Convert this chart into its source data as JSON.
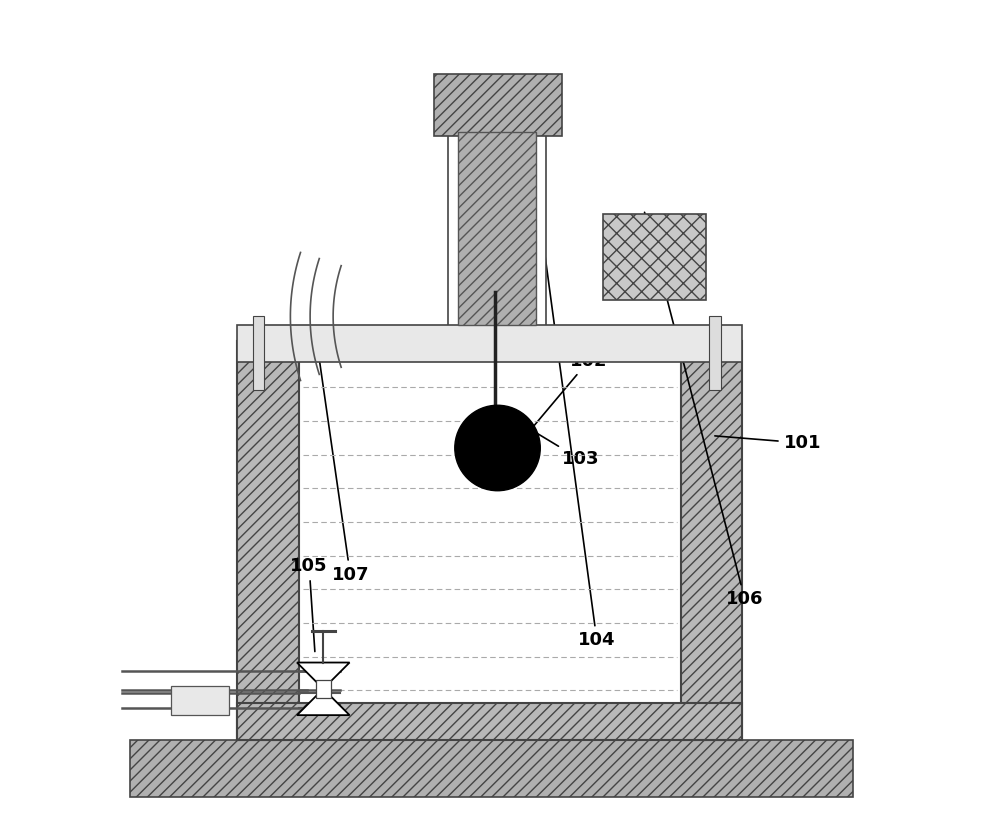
{
  "bg_color": "#ffffff",
  "wall_fc": "#b8b8b8",
  "wall_ec": "#444444",
  "ground_fc": "#b0b0b0",
  "ground_ec": "#444444",
  "lid_fc": "#e8e8e8",
  "lid_ec": "#444444",
  "box106_fc": "#c8c8c8",
  "box106_ec": "#444444",
  "top_block_fc": "#b0b0b0",
  "top_block_ec": "#444444",
  "stem_fc": "#b0b0b0",
  "stem_ec": "#555555",
  "rod_color": "#222222",
  "ball_color": "#000000",
  "pipe_color": "#555555",
  "arc_color": "#555555",
  "label_fontsize": 13
}
